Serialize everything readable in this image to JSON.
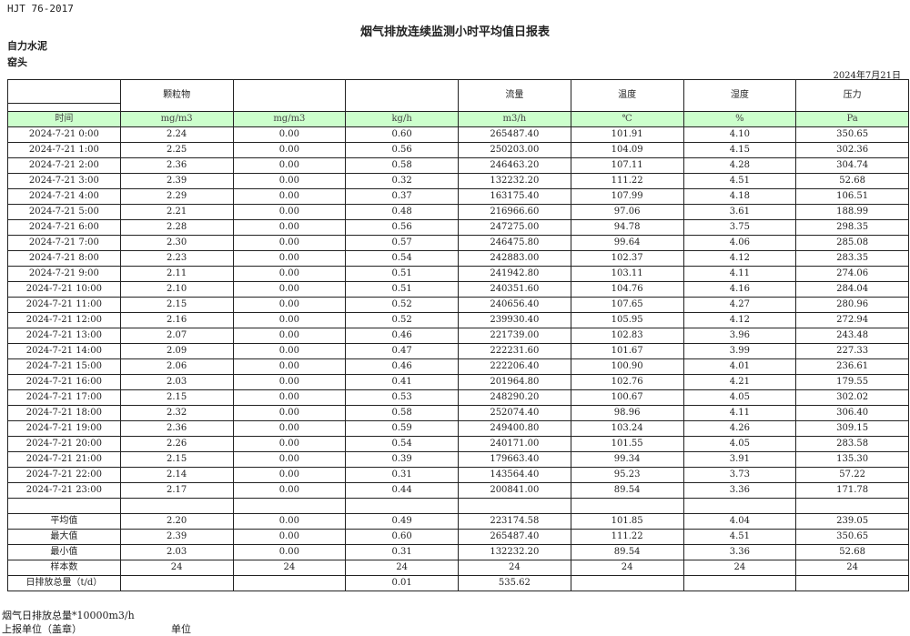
{
  "header": {
    "standard": "HJT  76-2017",
    "title": "烟气排放连续监测小时平均值日报表",
    "company": "自力水泥",
    "site": "窑头",
    "date": "2024年7月21日"
  },
  "table": {
    "columns": [
      "",
      "颗粒物",
      "",
      "",
      "流量",
      "温度",
      "湿度",
      "压力"
    ],
    "units": [
      "时间",
      "mg/m3",
      "mg/m3",
      "kg/h",
      "m3/h",
      "℃",
      "%",
      "Pa"
    ],
    "rows": [
      [
        "2024-7-21  0:00",
        "2.24",
        "0.00",
        "0.60",
        "265487.40",
        "101.91",
        "4.10",
        "350.65"
      ],
      [
        "2024-7-21  1:00",
        "2.25",
        "0.00",
        "0.56",
        "250203.00",
        "104.09",
        "4.15",
        "302.36"
      ],
      [
        "2024-7-21  2:00",
        "2.36",
        "0.00",
        "0.58",
        "246463.20",
        "107.11",
        "4.28",
        "304.74"
      ],
      [
        "2024-7-21  3:00",
        "2.39",
        "0.00",
        "0.32",
        "132232.20",
        "111.22",
        "4.51",
        "52.68"
      ],
      [
        "2024-7-21  4:00",
        "2.29",
        "0.00",
        "0.37",
        "163175.40",
        "107.99",
        "4.18",
        "106.51"
      ],
      [
        "2024-7-21  5:00",
        "2.21",
        "0.00",
        "0.48",
        "216966.60",
        "97.06",
        "3.61",
        "188.99"
      ],
      [
        "2024-7-21  6:00",
        "2.28",
        "0.00",
        "0.56",
        "247275.00",
        "94.78",
        "3.75",
        "298.35"
      ],
      [
        "2024-7-21  7:00",
        "2.30",
        "0.00",
        "0.57",
        "246475.80",
        "99.64",
        "4.06",
        "285.08"
      ],
      [
        "2024-7-21  8:00",
        "2.23",
        "0.00",
        "0.54",
        "242883.00",
        "102.37",
        "4.12",
        "283.35"
      ],
      [
        "2024-7-21  9:00",
        "2.11",
        "0.00",
        "0.51",
        "241942.80",
        "103.11",
        "4.11",
        "274.06"
      ],
      [
        "2024-7-21  10:00",
        "2.10",
        "0.00",
        "0.51",
        "240351.60",
        "104.76",
        "4.16",
        "284.04"
      ],
      [
        "2024-7-21  11:00",
        "2.15",
        "0.00",
        "0.52",
        "240656.40",
        "107.65",
        "4.27",
        "280.96"
      ],
      [
        "2024-7-21  12:00",
        "2.16",
        "0.00",
        "0.52",
        "239930.40",
        "105.95",
        "4.12",
        "272.94"
      ],
      [
        "2024-7-21  13:00",
        "2.07",
        "0.00",
        "0.46",
        "221739.00",
        "102.83",
        "3.96",
        "243.48"
      ],
      [
        "2024-7-21  14:00",
        "2.09",
        "0.00",
        "0.47",
        "222231.60",
        "101.67",
        "3.99",
        "227.33"
      ],
      [
        "2024-7-21  15:00",
        "2.06",
        "0.00",
        "0.46",
        "222206.40",
        "100.90",
        "4.01",
        "236.61"
      ],
      [
        "2024-7-21  16:00",
        "2.03",
        "0.00",
        "0.41",
        "201964.80",
        "102.76",
        "4.21",
        "179.55"
      ],
      [
        "2024-7-21  17:00",
        "2.15",
        "0.00",
        "0.53",
        "248290.20",
        "100.67",
        "4.05",
        "302.02"
      ],
      [
        "2024-7-21  18:00",
        "2.32",
        "0.00",
        "0.58",
        "252074.40",
        "98.96",
        "4.11",
        "306.40"
      ],
      [
        "2024-7-21  19:00",
        "2.36",
        "0.00",
        "0.59",
        "249400.80",
        "103.24",
        "4.26",
        "309.15"
      ],
      [
        "2024-7-21  20:00",
        "2.26",
        "0.00",
        "0.54",
        "240171.00",
        "101.55",
        "4.05",
        "283.58"
      ],
      [
        "2024-7-21  21:00",
        "2.15",
        "0.00",
        "0.39",
        "179663.40",
        "99.34",
        "3.91",
        "135.30"
      ],
      [
        "2024-7-21  22:00",
        "2.14",
        "0.00",
        "0.31",
        "143564.40",
        "95.23",
        "3.73",
        "57.22"
      ],
      [
        "2024-7-21  23:00",
        "2.17",
        "0.00",
        "0.44",
        "200841.00",
        "89.54",
        "3.36",
        "171.78"
      ],
      [
        "",
        "",
        "",
        "",
        "",
        "",
        "",
        ""
      ]
    ],
    "summary": [
      [
        "平均值",
        "2.20",
        "0.00",
        "0.49",
        "223174.58",
        "101.85",
        "4.04",
        "239.05"
      ],
      [
        "最大值",
        "2.39",
        "0.00",
        "0.60",
        "265487.40",
        "111.22",
        "4.51",
        "350.65"
      ],
      [
        "最小值",
        "2.03",
        "0.00",
        "0.31",
        "132232.20",
        "89.54",
        "3.36",
        "52.68"
      ],
      [
        "样本数",
        "24",
        "24",
        "24",
        "24",
        "24",
        "24",
        "24"
      ],
      [
        "日排放总量（t/d）",
        "",
        "",
        "0.01",
        "535.62",
        "",
        "",
        ""
      ]
    ]
  },
  "footer": {
    "note": "烟气日排放总量*10000m3/h",
    "reporter": "上报单位（盖章）",
    "unit": "单位"
  }
}
